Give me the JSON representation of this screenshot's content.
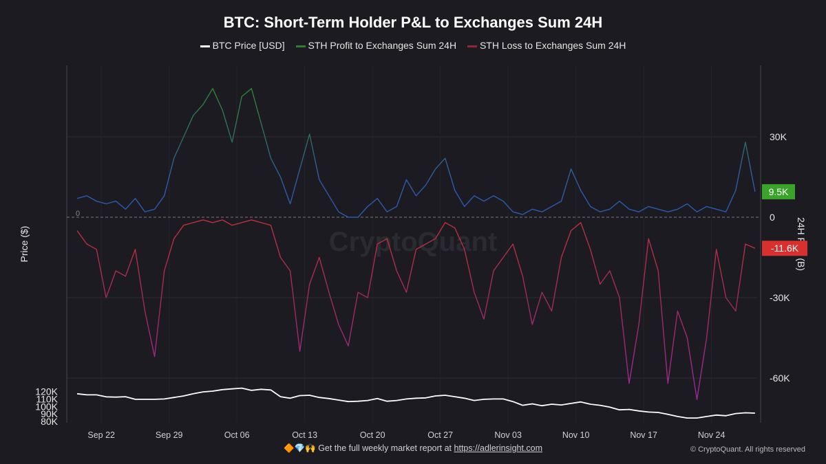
{
  "chart_data": {
    "type": "line",
    "title": "BTC: Short-Term Holder P&L to Exchanges Sum 24H",
    "ylabel_left": "Price ($)",
    "ylabel_right": "24H P&L (B)",
    "ylim_left": [
      80000,
      127000
    ],
    "ylim_right": [
      -75000,
      50000
    ],
    "yticks_left": [
      {
        "v": 80000,
        "label": "80K"
      },
      {
        "v": 90000,
        "label": "90K"
      },
      {
        "v": 100000,
        "label": "100K"
      },
      {
        "v": 110000,
        "label": "110K"
      },
      {
        "v": 120000,
        "label": "120K"
      }
    ],
    "yticks_right": [
      {
        "v": 30000,
        "label": "30K"
      },
      {
        "v": 0,
        "label": "0"
      },
      {
        "v": -30000,
        "label": "-30K"
      },
      {
        "v": -60000,
        "label": "-60K"
      }
    ],
    "xticks": [
      "Sep 22",
      "Sep 29",
      "Oct 06",
      "Oct 13",
      "Oct 20",
      "Oct 27",
      "Nov 03",
      "Nov 10",
      "Nov 17",
      "Nov 24"
    ],
    "zero_line_label": "0",
    "grid": true,
    "legend_position": "top",
    "watermark": "CryptoQuant",
    "x": [
      "Sep 19",
      "Sep 20",
      "Sep 21",
      "Sep 22",
      "Sep 23",
      "Sep 24",
      "Sep 25",
      "Sep 26",
      "Sep 27",
      "Sep 28",
      "Sep 29",
      "Sep 30",
      "Oct 01",
      "Oct 02",
      "Oct 03",
      "Oct 04",
      "Oct 05",
      "Oct 06",
      "Oct 07",
      "Oct 08",
      "Oct 09",
      "Oct 10",
      "Oct 11",
      "Oct 12",
      "Oct 13",
      "Oct 14",
      "Oct 15",
      "Oct 16",
      "Oct 17",
      "Oct 18",
      "Oct 19",
      "Oct 20",
      "Oct 21",
      "Oct 22",
      "Oct 23",
      "Oct 24",
      "Oct 25",
      "Oct 26",
      "Oct 27",
      "Oct 28",
      "Oct 29",
      "Oct 30",
      "Oct 31",
      "Nov 01",
      "Nov 02",
      "Nov 03",
      "Nov 04",
      "Nov 05",
      "Nov 06",
      "Nov 07",
      "Nov 08",
      "Nov 09",
      "Nov 10",
      "Nov 11",
      "Nov 12",
      "Nov 13",
      "Nov 14",
      "Nov 15",
      "Nov 16",
      "Nov 17",
      "Nov 18",
      "Nov 19",
      "Nov 20",
      "Nov 21",
      "Nov 22",
      "Nov 23",
      "Nov 24",
      "Nov 25",
      "Nov 26",
      "Nov 27",
      "Nov 28"
    ],
    "series": [
      {
        "name": "BTC Price [USD]",
        "axis": "left",
        "color": "#ffffff",
        "values": [
          117000,
          115500,
          115500,
          112800,
          112500,
          113000,
          109500,
          109500,
          109500,
          110000,
          112000,
          114000,
          117000,
          119500,
          120500,
          122500,
          123500,
          124500,
          121500,
          123000,
          122000,
          113000,
          111000,
          114500,
          115000,
          112000,
          110500,
          108500,
          106500,
          107000,
          108000,
          110500,
          107000,
          108000,
          110000,
          111000,
          111500,
          114000,
          115000,
          113000,
          111000,
          108000,
          109500,
          110000,
          110000,
          106500,
          101500,
          103500,
          101000,
          103000,
          102000,
          104000,
          106000,
          103000,
          101500,
          99000,
          95500,
          96000,
          94000,
          92500,
          92000,
          89500,
          86500,
          84500,
          84500,
          86500,
          88500,
          87500,
          90500,
          91500,
          91000
        ]
      },
      {
        "name": "STH Profit to Exchanges Sum 24H",
        "axis": "right",
        "color": "#2e7d32",
        "color_low": "#2a5bb0",
        "values": [
          7000,
          8000,
          6000,
          5000,
          6000,
          3000,
          7000,
          2000,
          3000,
          8000,
          22000,
          30000,
          38000,
          42000,
          48000,
          40000,
          28000,
          45000,
          48000,
          35000,
          22000,
          15000,
          5000,
          18000,
          31000,
          14000,
          8000,
          2000,
          0,
          0,
          4000,
          7000,
          2000,
          4000,
          14000,
          8000,
          12000,
          18000,
          22000,
          10000,
          4000,
          8000,
          6000,
          8000,
          6000,
          2000,
          1000,
          3000,
          2000,
          4000,
          6000,
          18000,
          10000,
          4000,
          2000,
          3000,
          6000,
          3000,
          2000,
          4000,
          3000,
          2000,
          3000,
          5000,
          2000,
          4000,
          3000,
          2000,
          10000,
          28000,
          9500
        ]
      },
      {
        "name": "STH Loss to Exchanges Sum 24H",
        "axis": "right",
        "color": "#c0303a",
        "color_low": "#9c2a9a",
        "values": [
          -5000,
          -10000,
          -12000,
          -30000,
          -20000,
          -22000,
          -12000,
          -35000,
          -52000,
          -20000,
          -8000,
          -3000,
          -2000,
          -1000,
          -2000,
          -1000,
          -3000,
          -2000,
          -1000,
          -2000,
          -3000,
          -15000,
          -20000,
          -50000,
          -25000,
          -15000,
          -28000,
          -40000,
          -48000,
          -28000,
          -30000,
          -10000,
          -8000,
          -20000,
          -28000,
          -12000,
          -10000,
          -8000,
          -2000,
          -4000,
          -12000,
          -28000,
          -38000,
          -20000,
          -15000,
          -10000,
          -22000,
          -40000,
          -28000,
          -35000,
          -15000,
          -5000,
          -2000,
          -12000,
          -25000,
          -20000,
          -30000,
          -62000,
          -40000,
          -8000,
          -20000,
          -62000,
          -35000,
          -45000,
          -68000,
          -45000,
          -12000,
          -30000,
          -35000,
          -10000,
          -11600
        ]
      }
    ],
    "last_value_badges": [
      {
        "label": "9.5K",
        "color": "#3aa32a"
      },
      {
        "label": "-11.6K",
        "color": "#d8302e"
      }
    ]
  },
  "legend": {
    "price": "BTC Price [USD]",
    "profit": "STH Profit to Exchanges Sum 24H",
    "loss": "STH Loss to Exchanges Sum 24H"
  },
  "footer": {
    "emoji": "🔶💎🙌",
    "text": "Get the full weekly market report at",
    "link": "https://adlerinsight.com",
    "copyright": "© CryptoQuant. All rights reserved"
  }
}
